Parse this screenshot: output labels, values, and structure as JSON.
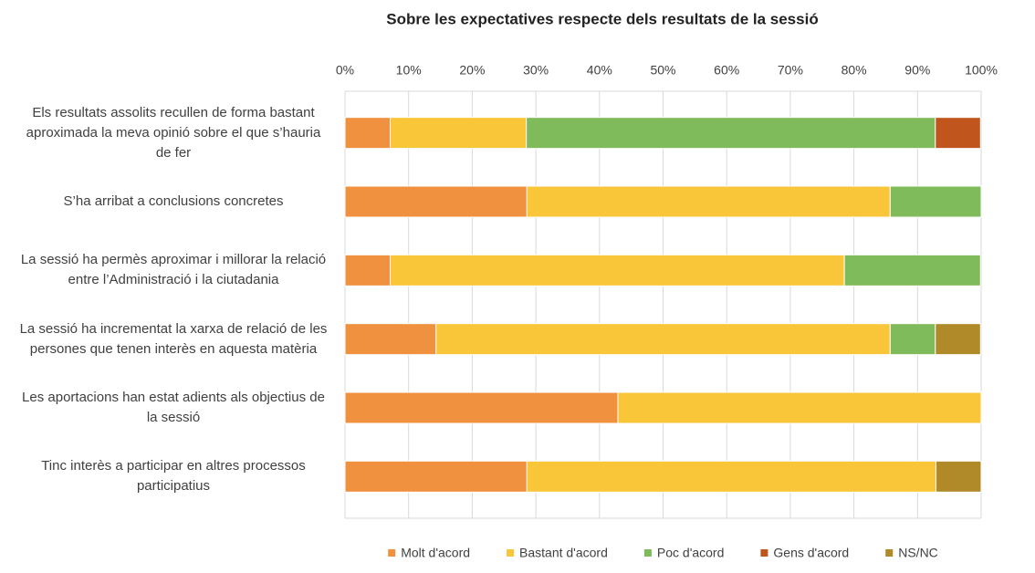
{
  "chart_data": {
    "type": "stacked_barh",
    "title": "Sobre les expectatives respecte dels resultats de la sessió",
    "categories": [
      "Els resultats assolits recullen de forma bastant aproximada la meva opinió sobre el que s’hauria de fer",
      "S’ha arribat a conclusions concretes",
      "La sessió ha permès aproximar i millorar la relació entre l’Administració i la ciutadania",
      "La sessió ha incrementat la xarxa de relació de les persones que tenen interès en aquesta matèria",
      "Les aportacions han estat adients als objectius de la sessió",
      "Tinc interès a participar en altres processos participatius"
    ],
    "series": [
      {
        "name": "Molt d'acord",
        "color": "#f0913f",
        "values": [
          7.1,
          28.6,
          7.1,
          14.3,
          42.9,
          28.6
        ]
      },
      {
        "name": "Bastant d'acord",
        "color": "#f9c63a",
        "values": [
          21.4,
          57.1,
          71.4,
          71.4,
          57.1,
          64.3
        ]
      },
      {
        "name": "Poc d'acord",
        "color": "#7fbb5a",
        "values": [
          64.3,
          14.3,
          21.4,
          7.1,
          null,
          null
        ]
      },
      {
        "name": "Gens d'acord",
        "color": "#c0561e",
        "values": [
          7.1,
          null,
          null,
          null,
          null,
          null
        ]
      },
      {
        "name": "NS/NC",
        "color": "#b08a28",
        "values": [
          null,
          null,
          null,
          7.1,
          null,
          7.1
        ]
      }
    ],
    "xlim": [
      0,
      100
    ],
    "xticks": [
      {
        "value": 0,
        "label": "0%"
      },
      {
        "value": 10,
        "label": "10%"
      },
      {
        "value": 20,
        "label": "20%"
      },
      {
        "value": 30,
        "label": "30%"
      },
      {
        "value": 40,
        "label": "40%"
      },
      {
        "value": 50,
        "label": "50%"
      },
      {
        "value": 60,
        "label": "60%"
      },
      {
        "value": 70,
        "label": "70%"
      },
      {
        "value": 80,
        "label": "80%"
      },
      {
        "value": 90,
        "label": "90%"
      },
      {
        "value": 100,
        "label": "100%"
      }
    ],
    "grid": true,
    "legend": "bottom"
  }
}
